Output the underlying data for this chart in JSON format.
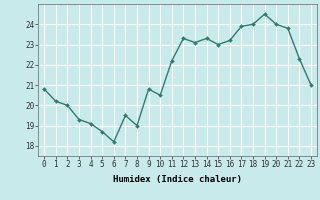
{
  "x": [
    0,
    1,
    2,
    3,
    4,
    5,
    6,
    7,
    8,
    9,
    10,
    11,
    12,
    13,
    14,
    15,
    16,
    17,
    18,
    19,
    20,
    21,
    22,
    23
  ],
  "y": [
    20.8,
    20.2,
    20.0,
    19.3,
    19.1,
    18.7,
    18.2,
    19.5,
    19.0,
    20.8,
    20.5,
    22.2,
    23.3,
    23.1,
    23.3,
    23.0,
    23.2,
    23.9,
    24.0,
    24.5,
    24.0,
    23.8,
    22.3,
    21.0
  ],
  "line_color": "#2e7d6e",
  "marker": "D",
  "marker_size": 2.0,
  "bg_color": "#c8eaea",
  "grid_color": "#ffffff",
  "xlabel": "Humidex (Indice chaleur)",
  "ylim": [
    17.5,
    25.0
  ],
  "xlim": [
    -0.5,
    23.5
  ],
  "yticks": [
    18,
    19,
    20,
    21,
    22,
    23,
    24
  ],
  "xticks": [
    0,
    1,
    2,
    3,
    4,
    5,
    6,
    7,
    8,
    9,
    10,
    11,
    12,
    13,
    14,
    15,
    16,
    17,
    18,
    19,
    20,
    21,
    22,
    23
  ],
  "xlabel_fontsize": 6.5,
  "tick_fontsize": 5.5,
  "line_width": 1.0
}
